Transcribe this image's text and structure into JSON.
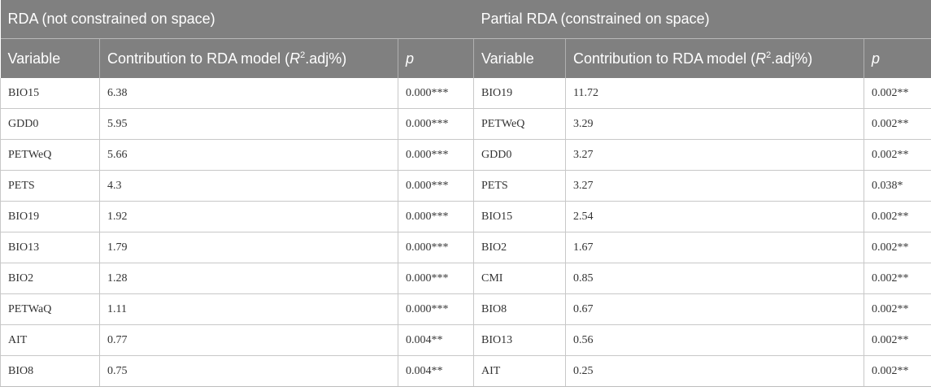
{
  "groups": {
    "left": "RDA (not constrained on space)",
    "right": "Partial RDA (constrained on space)"
  },
  "columns": {
    "variable": "Variable",
    "contribution_prefix": "Contribution to RDA model (",
    "r_letter": "R",
    "r_sup": "2",
    "contribution_suffix": ".adj%)",
    "p": "p"
  },
  "left_rows": [
    {
      "variable": "BIO15",
      "contribution": "6.38",
      "p": "0.000***"
    },
    {
      "variable": "GDD0",
      "contribution": "5.95",
      "p": "0.000***"
    },
    {
      "variable": "PETWeQ",
      "contribution": "5.66",
      "p": "0.000***"
    },
    {
      "variable": "PETS",
      "contribution": "4.3",
      "p": "0.000***"
    },
    {
      "variable": "BIO19",
      "contribution": "1.92",
      "p": "0.000***"
    },
    {
      "variable": "BIO13",
      "contribution": "1.79",
      "p": "0.000***"
    },
    {
      "variable": "BIO2",
      "contribution": "1.28",
      "p": "0.000***"
    },
    {
      "variable": "PETWaQ",
      "contribution": "1.11",
      "p": "0.000***"
    },
    {
      "variable": "AIT",
      "contribution": "0.77",
      "p": "0.004**"
    },
    {
      "variable": "BIO8",
      "contribution": "0.75",
      "p": "0.004**"
    }
  ],
  "right_rows": [
    {
      "variable": "BIO19",
      "contribution": "11.72",
      "p": "0.002**"
    },
    {
      "variable": "PETWeQ",
      "contribution": "3.29",
      "p": "0.002**"
    },
    {
      "variable": "GDD0",
      "contribution": "3.27",
      "p": "0.002**"
    },
    {
      "variable": "PETS",
      "contribution": "3.27",
      "p": "0.038*"
    },
    {
      "variable": "BIO15",
      "contribution": "2.54",
      "p": "0.002**"
    },
    {
      "variable": "BIO2",
      "contribution": "1.67",
      "p": "0.002**"
    },
    {
      "variable": "CMI",
      "contribution": "0.85",
      "p": "0.002**"
    },
    {
      "variable": "BIO8",
      "contribution": "0.67",
      "p": "0.002**"
    },
    {
      "variable": "BIO13",
      "contribution": "0.56",
      "p": "0.002**"
    },
    {
      "variable": "AIT",
      "contribution": "0.25",
      "p": "0.002**"
    }
  ],
  "colors": {
    "header_bg": "#808080",
    "header_text": "#ffffff",
    "body_text": "#333333",
    "grid": "#c8c8c8"
  }
}
